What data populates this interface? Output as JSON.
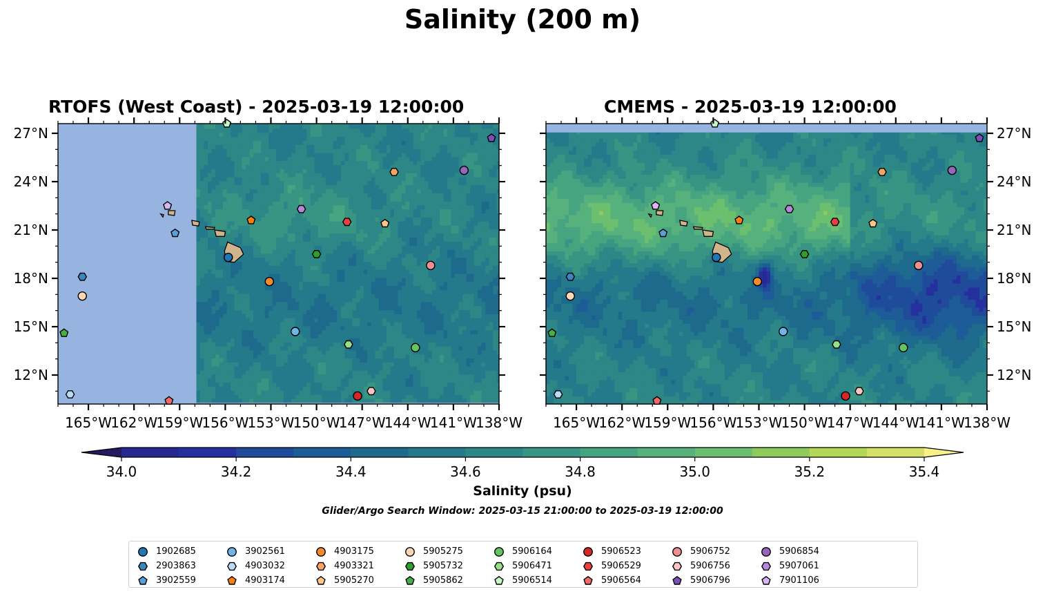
{
  "figure": {
    "title": "Salinity (200 m)",
    "colorbar_label": "Salinity (psu)",
    "search_window_note": "Glider/Argo Search Window: 2025-03-15 21:00:00 to 2025-03-19 12:00:00",
    "land_color": "#d2b48c",
    "no_data_color": "#97b4e0",
    "marker_edge_color": "#000000"
  },
  "chart_data": [
    {
      "type": "heatmap",
      "title": "RTOFS (West Coast) - 2025-03-19 12:00:00",
      "xlim": [
        -167,
        -138
      ],
      "ylim": [
        10.2,
        27.6
      ],
      "x_ticks": [
        -165,
        -162,
        -159,
        -156,
        -153,
        -150,
        -147,
        -144,
        -141,
        -138
      ],
      "x_tick_labels": [
        "165°W",
        "162°W",
        "159°W",
        "156°W",
        "153°W",
        "150°W",
        "147°W",
        "144°W",
        "141°W",
        "138°W"
      ],
      "y_ticks": [
        12,
        15,
        18,
        21,
        24,
        27
      ],
      "y_tick_labels": [
        "12°N",
        "15°N",
        "18°N",
        "21°N",
        "24°N",
        "27°N"
      ],
      "y_axis_side": "left",
      "data_extent": {
        "lon": [
          -157.9,
          -138
        ],
        "lat": [
          10.3,
          27.6
        ]
      },
      "no_data_region": "west of 157.9°W"
    },
    {
      "type": "heatmap",
      "title": "CMEMS - 2025-03-19 12:00:00",
      "xlim": [
        -167,
        -138
      ],
      "ylim": [
        10.2,
        27.6
      ],
      "x_ticks": [
        -165,
        -162,
        -159,
        -156,
        -153,
        -150,
        -147,
        -144,
        -141,
        -138
      ],
      "x_tick_labels": [
        "165°W",
        "162°W",
        "159°W",
        "156°W",
        "153°W",
        "150°W",
        "147°W",
        "144°W",
        "141°W",
        "138°W"
      ],
      "y_ticks": [
        12,
        15,
        18,
        21,
        24,
        27
      ],
      "y_tick_labels": [
        "12°N",
        "15°N",
        "18°N",
        "21°N",
        "24°N",
        "27°N"
      ],
      "y_axis_side": "right",
      "data_extent": {
        "lon": [
          -167,
          -138
        ],
        "lat": [
          10.2,
          27.05
        ]
      },
      "no_data_region": "north of 27.05°N"
    }
  ],
  "colorbar": {
    "min": 33.9,
    "max": 35.4,
    "extend": "both",
    "levels": [
      34.0,
      34.1,
      34.2,
      34.3,
      34.4,
      34.5,
      34.6,
      34.7,
      34.8,
      34.9,
      35.0,
      35.1,
      35.2,
      35.3,
      35.4
    ],
    "colors": [
      "#261a5e",
      "#27288f",
      "#25309e",
      "#1f4b9a",
      "#1d5c96",
      "#1e6a8d",
      "#247a8a",
      "#2c8786",
      "#399583",
      "#47a481",
      "#56b17c",
      "#6bbf6e",
      "#8ecb5c",
      "#b3d857",
      "#d4e06a",
      "#f2eb7b"
    ],
    "under_color": "#261a5e",
    "over_color": "#f9f08a",
    "ticks": [
      34.0,
      34.2,
      34.4,
      34.6,
      34.8,
      35.0,
      35.2,
      35.4
    ],
    "tick_labels": [
      "34.0",
      "34.2",
      "34.4",
      "34.6",
      "34.8",
      "35.0",
      "35.2",
      "35.4"
    ]
  },
  "islands": [
    {
      "name": "Hawaii",
      "lon": -155.5,
      "lat": 19.6
    },
    {
      "name": "Maui",
      "lon": -156.3,
      "lat": 20.8
    },
    {
      "name": "Molokai",
      "lon": -157.0,
      "lat": 21.1
    },
    {
      "name": "Oahu",
      "lon": -157.95,
      "lat": 21.45
    },
    {
      "name": "Kauai",
      "lon": -159.5,
      "lat": 22.05
    },
    {
      "name": "Niihau",
      "lon": -160.15,
      "lat": 21.9
    }
  ],
  "floats": [
    {
      "id": "1902685",
      "marker": "circle",
      "color": "#1f77b4",
      "lon": -155.8,
      "lat": 19.3
    },
    {
      "id": "2903863",
      "marker": "hexagon",
      "color": "#3a87c0",
      "lon": -165.4,
      "lat": 18.1
    },
    {
      "id": "3902559",
      "marker": "pentagon",
      "color": "#5aa0d8",
      "lon": -159.3,
      "lat": 20.8
    },
    {
      "id": "3902561",
      "marker": "circle",
      "color": "#6fb6e8",
      "lon": -151.4,
      "lat": 14.7
    },
    {
      "id": "4903032",
      "marker": "hexagon",
      "color": "#b8dcf5",
      "lon": -166.2,
      "lat": 10.8
    },
    {
      "id": "4903174",
      "marker": "pentagon",
      "color": "#ff7f0e",
      "lon": -154.3,
      "lat": 21.6
    },
    {
      "id": "4903175",
      "marker": "circle",
      "color": "#f28a2e",
      "lon": -153.1,
      "lat": 17.8
    },
    {
      "id": "4903321",
      "marker": "hexagon",
      "color": "#f5a55f",
      "lon": -144.9,
      "lat": 24.6
    },
    {
      "id": "5905270",
      "marker": "pentagon",
      "color": "#ffc58a",
      "lon": -145.5,
      "lat": 21.4
    },
    {
      "id": "5905275",
      "marker": "circle",
      "color": "#ffd7b5",
      "lon": -165.4,
      "lat": 16.9
    },
    {
      "id": "5905732",
      "marker": "hexagon",
      "color": "#2ca02c",
      "lon": -150.0,
      "lat": 19.5
    },
    {
      "id": "5905862",
      "marker": "pentagon",
      "color": "#45b045",
      "lon": -166.6,
      "lat": 14.6
    },
    {
      "id": "5906164",
      "marker": "circle",
      "color": "#62c462",
      "lon": -143.5,
      "lat": 13.7
    },
    {
      "id": "5906471",
      "marker": "hexagon",
      "color": "#98df8a",
      "lon": -147.9,
      "lat": 13.9
    },
    {
      "id": "5906514",
      "marker": "pentagon",
      "color": "#c7f7c2",
      "lon": -155.9,
      "lat": 27.6
    },
    {
      "id": "5906523",
      "marker": "circle",
      "color": "#d62728",
      "lon": -147.3,
      "lat": 10.7
    },
    {
      "id": "5906529",
      "marker": "hexagon",
      "color": "#e84141",
      "lon": -148.0,
      "lat": 21.5
    },
    {
      "id": "5906564",
      "marker": "pentagon",
      "color": "#f26a6a",
      "lon": -159.7,
      "lat": 10.4
    },
    {
      "id": "5906752",
      "marker": "circle",
      "color": "#f08f8f",
      "lon": -142.5,
      "lat": 18.8
    },
    {
      "id": "5906756",
      "marker": "hexagon",
      "color": "#ffc4c4",
      "lon": -146.4,
      "lat": 11.0
    },
    {
      "id": "5906796",
      "marker": "pentagon",
      "color": "#7a4fb8",
      "lon": -138.5,
      "lat": 26.7
    },
    {
      "id": "5906854",
      "marker": "circle",
      "color": "#9467bd",
      "lon": -140.3,
      "lat": 24.7
    },
    {
      "id": "5907061",
      "marker": "hexagon",
      "color": "#b48ad8",
      "lon": -151.0,
      "lat": 22.3
    },
    {
      "id": "7901106",
      "marker": "pentagon",
      "color": "#d9b5f2",
      "lon": -159.8,
      "lat": 22.5
    }
  ]
}
